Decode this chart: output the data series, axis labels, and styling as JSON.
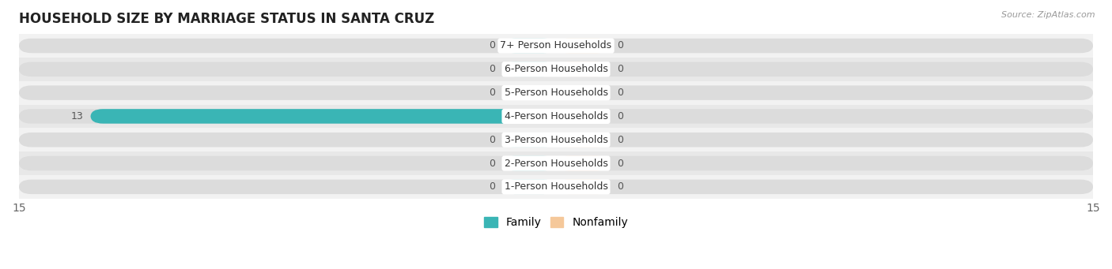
{
  "title": "HOUSEHOLD SIZE BY MARRIAGE STATUS IN SANTA CRUZ",
  "source": "Source: ZipAtlas.com",
  "categories": [
    "7+ Person Households",
    "6-Person Households",
    "5-Person Households",
    "4-Person Households",
    "3-Person Households",
    "2-Person Households",
    "1-Person Households"
  ],
  "family_values": [
    0,
    0,
    0,
    13,
    0,
    0,
    0
  ],
  "nonfamily_values": [
    0,
    0,
    0,
    0,
    0,
    0,
    0
  ],
  "family_color": "#3AB5B5",
  "nonfamily_color": "#F5C89A",
  "bar_bg_color": "#DCDCDC",
  "row_even_color": "#F2F2F2",
  "row_odd_color": "#E8E8E8",
  "xlim": [
    -15,
    15
  ],
  "title_fontsize": 12,
  "axis_fontsize": 10,
  "label_fontsize": 9,
  "value_fontsize": 9,
  "bar_height": 0.62,
  "stub_size": 1.5
}
